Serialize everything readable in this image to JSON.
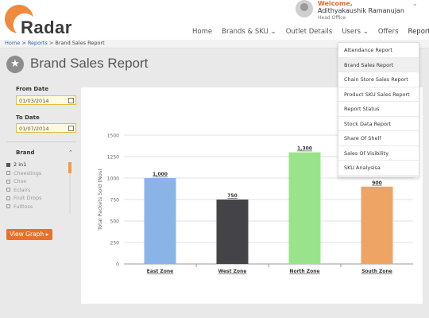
{
  "app": {
    "logo_text": "Radar"
  },
  "user": {
    "welcome": "Welcome,",
    "name": "Adithyakaushik Ramanujan",
    "office": "Head Office"
  },
  "nav": {
    "items": [
      {
        "label": "Home"
      },
      {
        "label": "Brands & SKU",
        "chevron": true
      },
      {
        "label": "Outlet Details"
      },
      {
        "label": "Users",
        "chevron": true
      },
      {
        "label": "Offers"
      },
      {
        "label": "Reports",
        "chevron": true,
        "active": true
      }
    ]
  },
  "breadcrumb": {
    "home": "Home",
    "reports": "Reports",
    "current": "Brand Sales Report",
    "sep": ">"
  },
  "page": {
    "title": "Brand Sales Report"
  },
  "filters": {
    "from_label": "From Date",
    "from_value": "01/03/2014",
    "to_label": "To Date",
    "to_value": "01/07/2014",
    "brand_label": "Brand",
    "brands": [
      {
        "label": "2 in1",
        "checked": true
      },
      {
        "label": "Cheeslings",
        "checked": false
      },
      {
        "label": "Chox",
        "checked": false
      },
      {
        "label": "Eclairs",
        "checked": false
      },
      {
        "label": "Fruit Drops",
        "checked": false
      },
      {
        "label": "Fulltoss",
        "checked": false
      }
    ],
    "view_button": "View Graph"
  },
  "reports_menu": {
    "items": [
      "Attendance Report",
      "Brand Sales Report",
      "Chain Store Sales Report",
      "Product SKU Sales Report",
      "Report Status",
      "Stock Data Report",
      "Share Of Shelf",
      "Sales Of Visibility",
      "SKU Analysisa"
    ],
    "active_index": 1
  },
  "chart_data": {
    "type": "bar",
    "categories": [
      "East Zone",
      "West Zone",
      "North Zone",
      "South Zone"
    ],
    "values": [
      1000,
      750,
      1300,
      900
    ],
    "data_labels": [
      "1,000",
      "750",
      "1,300",
      "900"
    ],
    "colors": [
      "#8ab4e8",
      "#434348",
      "#98e48a",
      "#eea464"
    ],
    "ylabel": "Total Packets Sold (Nos)",
    "yticks": [
      0,
      250,
      500,
      750,
      1000,
      1250,
      1500
    ],
    "ylim": [
      0,
      1500
    ],
    "grid": true
  }
}
